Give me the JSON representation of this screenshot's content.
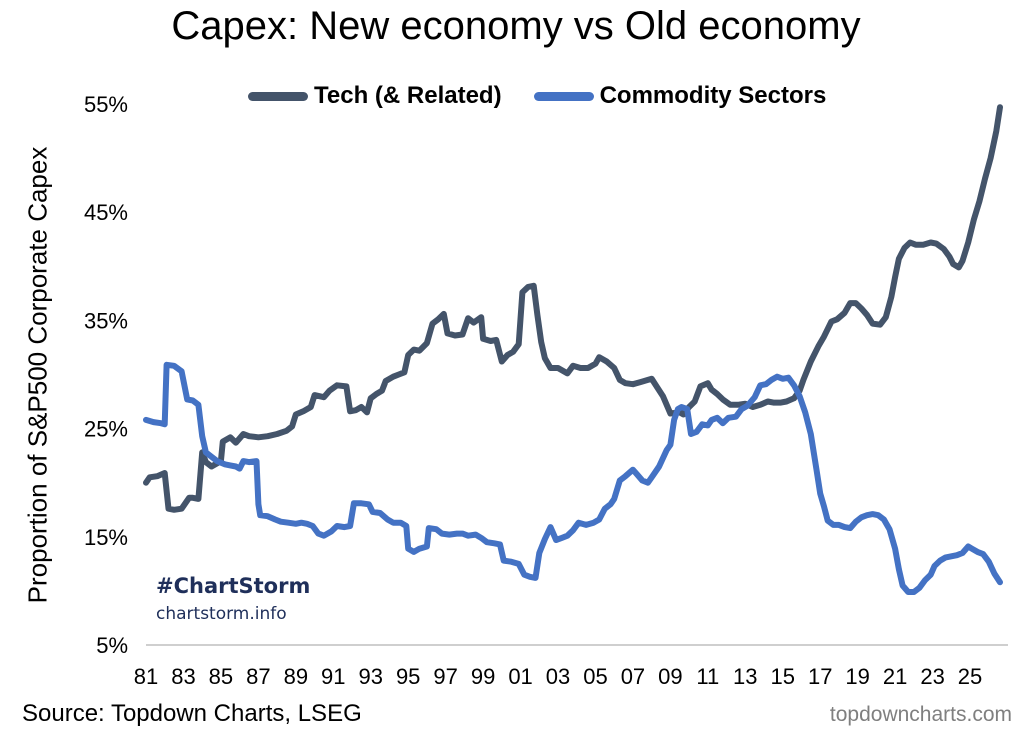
{
  "chart_data": {
    "type": "line",
    "title": "Capex: New economy vs Old economy",
    "ylabel": "Proportion of S&P500 Corporate Capex",
    "ylim": [
      5,
      55
    ],
    "yticks": [
      "5%",
      "15%",
      "25%",
      "35%",
      "45%",
      "55%"
    ],
    "yticks_values": [
      5,
      15,
      25,
      35,
      45,
      55
    ],
    "xlim": [
      1981,
      2026.6
    ],
    "xticks": [
      "81",
      "83",
      "85",
      "87",
      "89",
      "91",
      "93",
      "95",
      "97",
      "99",
      "01",
      "03",
      "05",
      "07",
      "09",
      "11",
      "13",
      "15",
      "17",
      "19",
      "21",
      "23",
      "25"
    ],
    "xticks_values": [
      1981,
      1983,
      1985,
      1987,
      1989,
      1991,
      1993,
      1995,
      1997,
      1999,
      2001,
      2003,
      2005,
      2007,
      2009,
      2011,
      2013,
      2015,
      2017,
      2019,
      2021,
      2023,
      2025
    ],
    "grid": false,
    "legend_position": "top",
    "series": [
      {
        "name": "Tech (& Related)",
        "color": "#44546a",
        "points": [
          [
            1981.0,
            20.0
          ],
          [
            1981.2,
            20.5
          ],
          [
            1981.6,
            20.6
          ],
          [
            1982.0,
            20.9
          ],
          [
            1982.2,
            17.6
          ],
          [
            1982.5,
            17.5
          ],
          [
            1982.9,
            17.6
          ],
          [
            1983.3,
            18.6
          ],
          [
            1983.5,
            18.6
          ],
          [
            1983.8,
            18.5
          ],
          [
            1984.0,
            22.8
          ],
          [
            1984.2,
            21.9
          ],
          [
            1984.5,
            21.5
          ],
          [
            1985.0,
            22.0
          ],
          [
            1985.1,
            23.8
          ],
          [
            1985.5,
            24.2
          ],
          [
            1985.8,
            23.7
          ],
          [
            1986.2,
            24.5
          ],
          [
            1986.5,
            24.3
          ],
          [
            1987.0,
            24.2
          ],
          [
            1987.5,
            24.3
          ],
          [
            1988.0,
            24.5
          ],
          [
            1988.5,
            24.8
          ],
          [
            1988.8,
            25.2
          ],
          [
            1989.0,
            26.3
          ],
          [
            1989.4,
            26.6
          ],
          [
            1989.8,
            27.0
          ],
          [
            1990.0,
            28.1
          ],
          [
            1990.5,
            27.9
          ],
          [
            1990.8,
            28.5
          ],
          [
            1991.2,
            29.0
          ],
          [
            1991.7,
            28.9
          ],
          [
            1991.9,
            26.6
          ],
          [
            1992.2,
            26.7
          ],
          [
            1992.5,
            27.0
          ],
          [
            1992.8,
            26.5
          ],
          [
            1993.0,
            27.8
          ],
          [
            1993.3,
            28.2
          ],
          [
            1993.6,
            28.5
          ],
          [
            1993.8,
            29.4
          ],
          [
            1994.2,
            29.8
          ],
          [
            1994.5,
            30.0
          ],
          [
            1994.8,
            30.2
          ],
          [
            1995.0,
            31.8
          ],
          [
            1995.3,
            32.3
          ],
          [
            1995.6,
            32.2
          ],
          [
            1996.0,
            32.9
          ],
          [
            1996.3,
            34.7
          ],
          [
            1996.6,
            35.1
          ],
          [
            1996.9,
            35.6
          ],
          [
            1997.1,
            33.8
          ],
          [
            1997.5,
            33.6
          ],
          [
            1997.9,
            33.7
          ],
          [
            1998.2,
            35.2
          ],
          [
            1998.5,
            34.8
          ],
          [
            1998.9,
            35.3
          ],
          [
            1999.0,
            33.3
          ],
          [
            1999.4,
            33.1
          ],
          [
            1999.7,
            33.2
          ],
          [
            2000.0,
            31.2
          ],
          [
            2000.3,
            31.8
          ],
          [
            2000.6,
            32.1
          ],
          [
            2000.9,
            32.8
          ],
          [
            2001.1,
            37.6
          ],
          [
            2001.4,
            38.1
          ],
          [
            2001.7,
            38.2
          ],
          [
            2001.9,
            35.5
          ],
          [
            2002.1,
            33.0
          ],
          [
            2002.3,
            31.5
          ],
          [
            2002.6,
            30.6
          ],
          [
            2003.0,
            30.6
          ],
          [
            2003.5,
            30.1
          ],
          [
            2003.8,
            30.8
          ],
          [
            2004.2,
            30.6
          ],
          [
            2004.6,
            30.6
          ],
          [
            2005.0,
            31.0
          ],
          [
            2005.2,
            31.6
          ],
          [
            2005.6,
            31.2
          ],
          [
            2006.0,
            30.6
          ],
          [
            2006.3,
            29.5
          ],
          [
            2006.6,
            29.2
          ],
          [
            2007.0,
            29.1
          ],
          [
            2007.4,
            29.3
          ],
          [
            2007.8,
            29.5
          ],
          [
            2008.0,
            29.6
          ],
          [
            2008.3,
            28.8
          ],
          [
            2008.6,
            28.0
          ],
          [
            2009.0,
            26.4
          ],
          [
            2009.5,
            26.5
          ],
          [
            2009.7,
            26.3
          ],
          [
            2010.0,
            27.0
          ],
          [
            2010.3,
            27.5
          ],
          [
            2010.6,
            28.9
          ],
          [
            2011.0,
            29.2
          ],
          [
            2011.2,
            28.6
          ],
          [
            2011.5,
            28.2
          ],
          [
            2011.8,
            27.7
          ],
          [
            2012.2,
            27.2
          ],
          [
            2012.6,
            27.2
          ],
          [
            2013.0,
            27.3
          ],
          [
            2013.4,
            27.0
          ],
          [
            2013.8,
            27.2
          ],
          [
            2014.2,
            27.5
          ],
          [
            2014.5,
            27.4
          ],
          [
            2014.9,
            27.4
          ],
          [
            2015.2,
            27.5
          ],
          [
            2015.6,
            27.8
          ],
          [
            2015.9,
            28.5
          ],
          [
            2016.1,
            29.5
          ],
          [
            2016.5,
            31.2
          ],
          [
            2016.9,
            32.6
          ],
          [
            2017.2,
            33.5
          ],
          [
            2017.6,
            34.9
          ],
          [
            2017.9,
            35.1
          ],
          [
            2018.3,
            35.7
          ],
          [
            2018.6,
            36.6
          ],
          [
            2018.9,
            36.6
          ],
          [
            2019.2,
            36.1
          ],
          [
            2019.5,
            35.5
          ],
          [
            2019.8,
            34.7
          ],
          [
            2020.2,
            34.6
          ],
          [
            2020.5,
            35.3
          ],
          [
            2020.8,
            37.2
          ],
          [
            2021.0,
            39.0
          ],
          [
            2021.2,
            40.7
          ],
          [
            2021.5,
            41.7
          ],
          [
            2021.8,
            42.2
          ],
          [
            2022.1,
            42.0
          ],
          [
            2022.5,
            42.0
          ],
          [
            2022.9,
            42.2
          ],
          [
            2023.2,
            42.1
          ],
          [
            2023.6,
            41.6
          ],
          [
            2023.9,
            40.9
          ],
          [
            2024.1,
            40.2
          ],
          [
            2024.4,
            39.9
          ],
          [
            2024.6,
            40.5
          ],
          [
            2024.9,
            42.2
          ],
          [
            2025.2,
            44.3
          ],
          [
            2025.5,
            46.0
          ],
          [
            2025.8,
            48.1
          ],
          [
            2026.1,
            50.0
          ],
          [
            2026.4,
            52.5
          ],
          [
            2026.6,
            54.7
          ]
        ]
      },
      {
        "name": "Commodity Sectors",
        "color": "#4472c4",
        "points": [
          [
            1981.0,
            25.8
          ],
          [
            1981.4,
            25.6
          ],
          [
            1981.8,
            25.5
          ],
          [
            1982.0,
            25.4
          ],
          [
            1982.1,
            30.9
          ],
          [
            1982.5,
            30.8
          ],
          [
            1982.9,
            30.3
          ],
          [
            1983.2,
            27.7
          ],
          [
            1983.5,
            27.6
          ],
          [
            1983.8,
            27.2
          ],
          [
            1984.0,
            24.3
          ],
          [
            1984.2,
            22.8
          ],
          [
            1984.5,
            22.4
          ],
          [
            1984.8,
            22.0
          ],
          [
            1985.2,
            21.7
          ],
          [
            1985.5,
            21.6
          ],
          [
            1985.8,
            21.5
          ],
          [
            1986.0,
            21.3
          ],
          [
            1986.2,
            22.0
          ],
          [
            1986.5,
            21.9
          ],
          [
            1986.9,
            22.0
          ],
          [
            1987.0,
            18.0
          ],
          [
            1987.1,
            17.0
          ],
          [
            1987.5,
            16.9
          ],
          [
            1987.9,
            16.6
          ],
          [
            1988.2,
            16.4
          ],
          [
            1988.6,
            16.3
          ],
          [
            1989.0,
            16.2
          ],
          [
            1989.3,
            16.3
          ],
          [
            1989.6,
            16.2
          ],
          [
            1989.9,
            16.0
          ],
          [
            1990.2,
            15.3
          ],
          [
            1990.5,
            15.1
          ],
          [
            1990.9,
            15.5
          ],
          [
            1991.2,
            16.0
          ],
          [
            1991.6,
            15.9
          ],
          [
            1991.9,
            16.0
          ],
          [
            1992.1,
            18.1
          ],
          [
            1992.5,
            18.1
          ],
          [
            1992.9,
            18.0
          ],
          [
            1993.1,
            17.3
          ],
          [
            1993.5,
            17.2
          ],
          [
            1993.9,
            16.6
          ],
          [
            1994.2,
            16.3
          ],
          [
            1994.6,
            16.3
          ],
          [
            1994.9,
            16.0
          ],
          [
            1995.0,
            13.9
          ],
          [
            1995.3,
            13.6
          ],
          [
            1995.6,
            13.9
          ],
          [
            1996.0,
            14.1
          ],
          [
            1996.1,
            15.8
          ],
          [
            1996.5,
            15.7
          ],
          [
            1996.8,
            15.3
          ],
          [
            1997.2,
            15.2
          ],
          [
            1997.6,
            15.3
          ],
          [
            1997.9,
            15.3
          ],
          [
            1998.2,
            15.1
          ],
          [
            1998.6,
            15.2
          ],
          [
            1998.9,
            14.9
          ],
          [
            1999.2,
            14.5
          ],
          [
            1999.6,
            14.4
          ],
          [
            1999.9,
            14.3
          ],
          [
            2000.1,
            12.8
          ],
          [
            2000.5,
            12.7
          ],
          [
            2000.9,
            12.5
          ],
          [
            2001.2,
            11.5
          ],
          [
            2001.5,
            11.3
          ],
          [
            2001.8,
            11.2
          ],
          [
            2002.0,
            13.5
          ],
          [
            2002.3,
            14.8
          ],
          [
            2002.6,
            15.9
          ],
          [
            2002.9,
            14.7
          ],
          [
            2003.2,
            14.9
          ],
          [
            2003.5,
            15.1
          ],
          [
            2003.8,
            15.6
          ],
          [
            2004.1,
            16.3
          ],
          [
            2004.5,
            16.1
          ],
          [
            2004.9,
            16.3
          ],
          [
            2005.2,
            16.6
          ],
          [
            2005.5,
            17.6
          ],
          [
            2005.8,
            18.0
          ],
          [
            2006.0,
            18.5
          ],
          [
            2006.3,
            20.2
          ],
          [
            2006.6,
            20.6
          ],
          [
            2007.0,
            21.2
          ],
          [
            2007.2,
            20.8
          ],
          [
            2007.5,
            20.2
          ],
          [
            2007.8,
            20.0
          ],
          [
            2008.0,
            20.5
          ],
          [
            2008.4,
            21.5
          ],
          [
            2008.8,
            23.0
          ],
          [
            2009.0,
            23.5
          ],
          [
            2009.2,
            25.8
          ],
          [
            2009.4,
            26.8
          ],
          [
            2009.6,
            27.0
          ],
          [
            2009.9,
            26.8
          ],
          [
            2010.1,
            24.5
          ],
          [
            2010.4,
            24.7
          ],
          [
            2010.7,
            25.4
          ],
          [
            2011.0,
            25.3
          ],
          [
            2011.2,
            25.8
          ],
          [
            2011.5,
            26.0
          ],
          [
            2011.8,
            25.5
          ],
          [
            2012.1,
            26.0
          ],
          [
            2012.5,
            26.1
          ],
          [
            2012.8,
            26.8
          ],
          [
            2013.1,
            27.1
          ],
          [
            2013.5,
            27.9
          ],
          [
            2013.8,
            29.0
          ],
          [
            2014.1,
            29.1
          ],
          [
            2014.4,
            29.5
          ],
          [
            2014.7,
            29.8
          ],
          [
            2015.0,
            29.6
          ],
          [
            2015.3,
            29.7
          ],
          [
            2015.6,
            29.0
          ],
          [
            2015.9,
            28.0
          ],
          [
            2016.2,
            26.5
          ],
          [
            2016.5,
            24.5
          ],
          [
            2016.8,
            21.2
          ],
          [
            2017.0,
            19.0
          ],
          [
            2017.2,
            17.8
          ],
          [
            2017.4,
            16.5
          ],
          [
            2017.7,
            16.1
          ],
          [
            2018.0,
            16.1
          ],
          [
            2018.3,
            15.9
          ],
          [
            2018.6,
            15.8
          ],
          [
            2018.9,
            16.4
          ],
          [
            2019.2,
            16.8
          ],
          [
            2019.5,
            17.0
          ],
          [
            2019.8,
            17.1
          ],
          [
            2020.1,
            17.0
          ],
          [
            2020.4,
            16.6
          ],
          [
            2020.7,
            15.7
          ],
          [
            2021.0,
            13.9
          ],
          [
            2021.2,
            12.0
          ],
          [
            2021.4,
            10.5
          ],
          [
            2021.7,
            9.9
          ],
          [
            2022.0,
            9.9
          ],
          [
            2022.3,
            10.3
          ],
          [
            2022.6,
            11.0
          ],
          [
            2022.9,
            11.5
          ],
          [
            2023.1,
            12.3
          ],
          [
            2023.4,
            12.8
          ],
          [
            2023.7,
            13.1
          ],
          [
            2024.0,
            13.2
          ],
          [
            2024.3,
            13.3
          ],
          [
            2024.6,
            13.5
          ],
          [
            2024.9,
            14.1
          ],
          [
            2025.1,
            13.9
          ],
          [
            2025.4,
            13.6
          ],
          [
            2025.7,
            13.4
          ],
          [
            2026.0,
            12.7
          ],
          [
            2026.3,
            11.6
          ],
          [
            2026.6,
            10.8
          ]
        ]
      }
    ]
  },
  "watermark": {
    "tag": "#ChartStorm",
    "site": "chartstorm.info"
  },
  "footer": {
    "source": "Source: Topdown Charts, LSEG",
    "credit": "topdowncharts.com"
  }
}
